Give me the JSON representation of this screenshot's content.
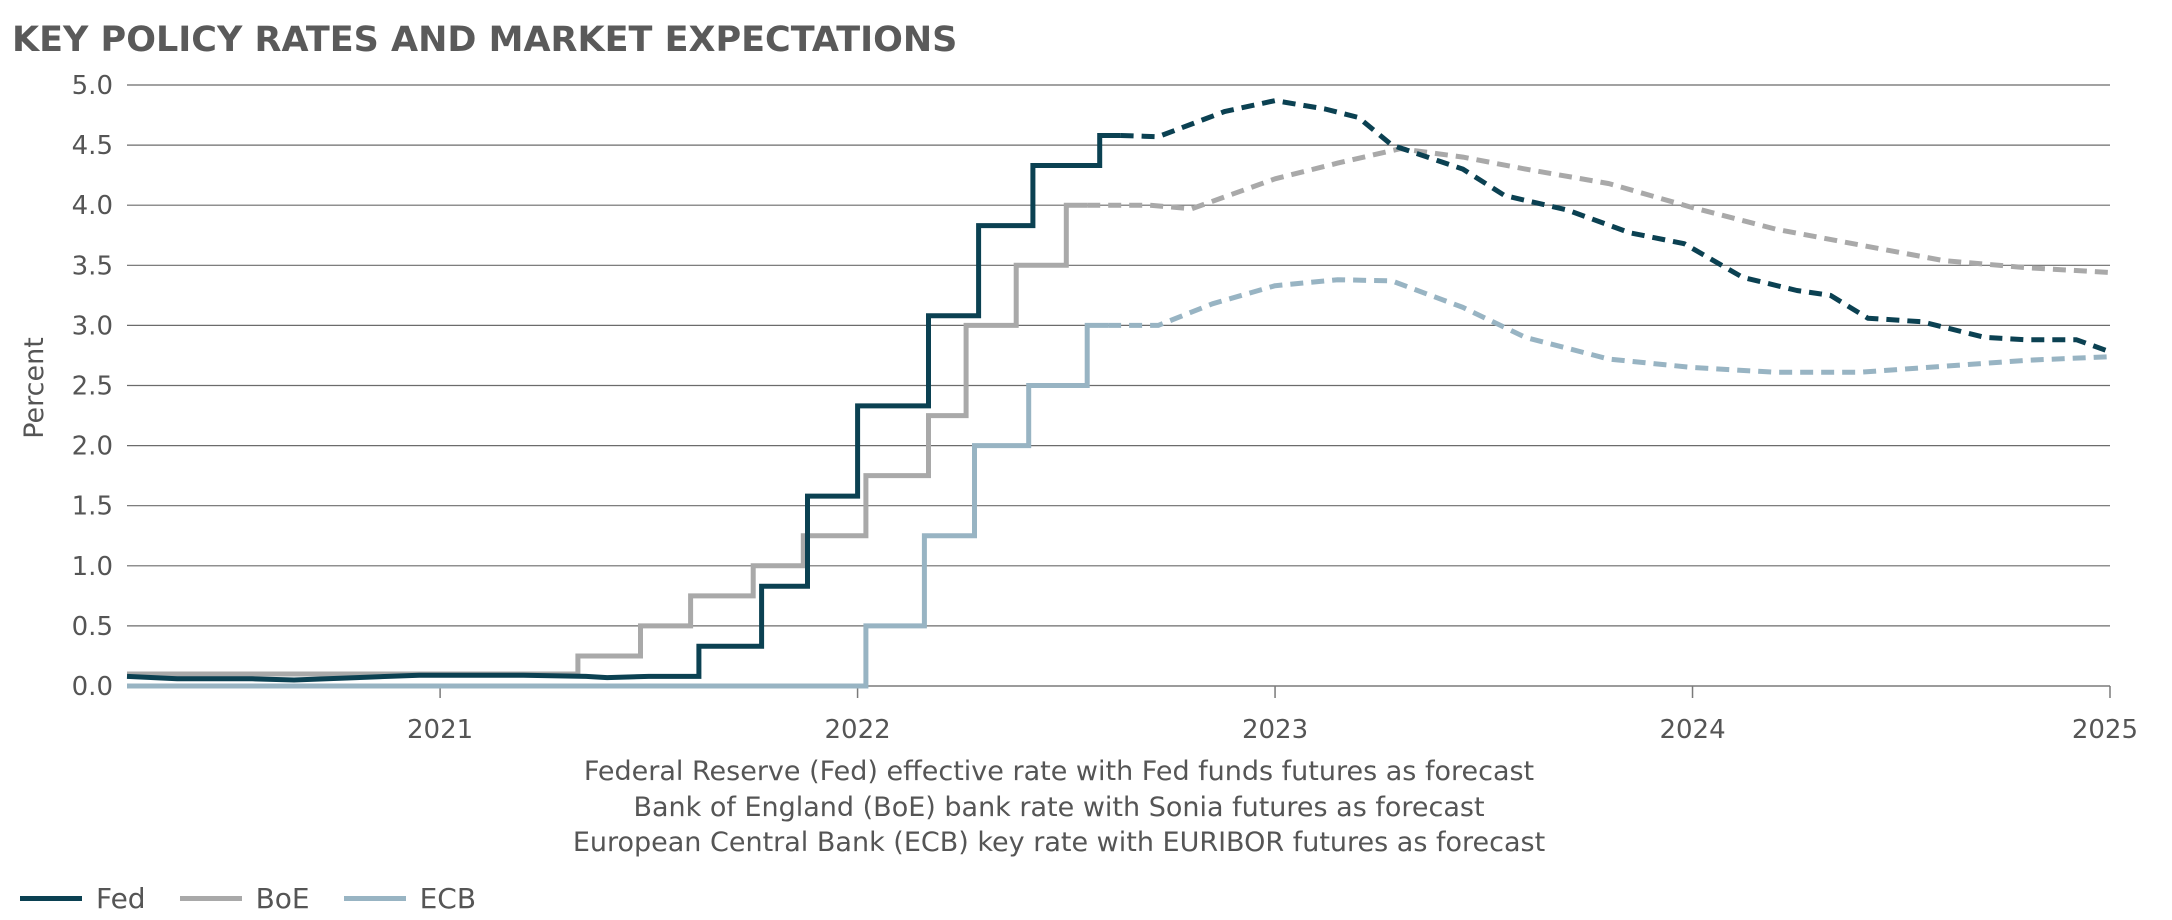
{
  "title": "KEY POLICY RATES AND MARKET EXPECTATIONS",
  "notes": [
    "Federal Reserve (Fed) effective rate with Fed funds futures as forecast",
    "Bank of England (BoE) bank rate with Sonia futures as forecast",
    "European Central Bank (ECB) key rate with EURIBOR futures as forecast"
  ],
  "chart_data": {
    "type": "line",
    "title": "KEY POLICY RATES AND MARKET EXPECTATIONS",
    "xlabel": "",
    "ylabel": "Percent",
    "xlim": [
      2020.25,
      2025.0
    ],
    "ylim": [
      0,
      5.0
    ],
    "y_ticks": [
      "0.0",
      "0.5",
      "1.0",
      "1.5",
      "2.0",
      "2.5",
      "3.0",
      "3.5",
      "4.0",
      "4.5",
      "5.0"
    ],
    "x_ticks": [
      "2021",
      "2022",
      "2023",
      "2024",
      "2025"
    ],
    "grid": "horizontal",
    "legend_position": "bottom-left",
    "forecast_style": "dashed",
    "series": [
      {
        "name": "Fed",
        "color": "#0b4152",
        "actual": [
          [
            2020.25,
            0.08
          ],
          [
            2020.37,
            0.06
          ],
          [
            2020.55,
            0.06
          ],
          [
            2020.65,
            0.05
          ],
          [
            2020.8,
            0.07
          ],
          [
            2020.95,
            0.09
          ],
          [
            2021.2,
            0.09
          ],
          [
            2021.35,
            0.08
          ],
          [
            2021.4,
            0.07
          ],
          [
            2021.5,
            0.08
          ],
          [
            2021.62,
            0.08
          ],
          [
            2021.62,
            0.33
          ],
          [
            2021.77,
            0.33
          ],
          [
            2021.77,
            0.83
          ],
          [
            2021.88,
            0.83
          ],
          [
            2021.88,
            1.58
          ],
          [
            2022.0,
            1.58
          ],
          [
            2022.0,
            2.33
          ],
          [
            2022.17,
            2.33
          ],
          [
            2022.17,
            3.08
          ],
          [
            2022.29,
            3.08
          ],
          [
            2022.29,
            3.83
          ],
          [
            2022.42,
            3.83
          ],
          [
            2022.42,
            4.33
          ],
          [
            2022.58,
            4.33
          ],
          [
            2022.58,
            4.58
          ],
          [
            2022.63,
            4.58
          ]
        ],
        "forecast": [
          [
            2022.63,
            4.58
          ],
          [
            2022.72,
            4.57
          ],
          [
            2022.88,
            4.78
          ],
          [
            2023.0,
            4.87
          ],
          [
            2023.12,
            4.8
          ],
          [
            2023.2,
            4.73
          ],
          [
            2023.28,
            4.5
          ],
          [
            2023.45,
            4.3
          ],
          [
            2023.55,
            4.08
          ],
          [
            2023.7,
            3.96
          ],
          [
            2023.85,
            3.77
          ],
          [
            2023.98,
            3.68
          ],
          [
            2024.12,
            3.4
          ],
          [
            2024.25,
            3.29
          ],
          [
            2024.33,
            3.25
          ],
          [
            2024.42,
            3.06
          ],
          [
            2024.55,
            3.03
          ],
          [
            2024.7,
            2.9
          ],
          [
            2024.8,
            2.88
          ],
          [
            2024.92,
            2.88
          ],
          [
            2025.0,
            2.78
          ]
        ]
      },
      {
        "name": "BoE",
        "color": "#a9a9a9",
        "actual": [
          [
            2020.25,
            0.1
          ],
          [
            2021.33,
            0.1
          ],
          [
            2021.33,
            0.25
          ],
          [
            2021.48,
            0.25
          ],
          [
            2021.48,
            0.5
          ],
          [
            2021.6,
            0.5
          ],
          [
            2021.6,
            0.75
          ],
          [
            2021.75,
            0.75
          ],
          [
            2021.75,
            1.0
          ],
          [
            2021.87,
            1.0
          ],
          [
            2021.87,
            1.25
          ],
          [
            2022.02,
            1.25
          ],
          [
            2022.02,
            1.75
          ],
          [
            2022.17,
            1.75
          ],
          [
            2022.17,
            2.25
          ],
          [
            2022.26,
            2.25
          ],
          [
            2022.26,
            3.0
          ],
          [
            2022.38,
            3.0
          ],
          [
            2022.38,
            3.5
          ],
          [
            2022.5,
            3.5
          ],
          [
            2022.5,
            4.0
          ],
          [
            2022.55,
            4.0
          ]
        ],
        "forecast": [
          [
            2022.55,
            4.0
          ],
          [
            2022.7,
            4.0
          ],
          [
            2022.8,
            3.97
          ],
          [
            2023.0,
            4.22
          ],
          [
            2023.15,
            4.35
          ],
          [
            2023.3,
            4.47
          ],
          [
            2023.45,
            4.4
          ],
          [
            2023.6,
            4.3
          ],
          [
            2023.8,
            4.18
          ],
          [
            2024.0,
            3.98
          ],
          [
            2024.2,
            3.8
          ],
          [
            2024.4,
            3.67
          ],
          [
            2024.6,
            3.54
          ],
          [
            2024.8,
            3.48
          ],
          [
            2025.0,
            3.44
          ]
        ]
      },
      {
        "name": "ECB",
        "color": "#98b4c3",
        "actual": [
          [
            2020.25,
            0.0
          ],
          [
            2022.02,
            0.0
          ],
          [
            2022.02,
            0.5
          ],
          [
            2022.16,
            0.5
          ],
          [
            2022.16,
            1.25
          ],
          [
            2022.28,
            1.25
          ],
          [
            2022.28,
            2.0
          ],
          [
            2022.41,
            2.0
          ],
          [
            2022.41,
            2.5
          ],
          [
            2022.55,
            2.5
          ],
          [
            2022.55,
            3.0
          ],
          [
            2022.6,
            3.0
          ]
        ],
        "forecast": [
          [
            2022.6,
            3.0
          ],
          [
            2022.72,
            3.0
          ],
          [
            2022.85,
            3.18
          ],
          [
            2023.0,
            3.33
          ],
          [
            2023.15,
            3.38
          ],
          [
            2023.28,
            3.37
          ],
          [
            2023.45,
            3.15
          ],
          [
            2023.6,
            2.9
          ],
          [
            2023.8,
            2.72
          ],
          [
            2024.0,
            2.65
          ],
          [
            2024.2,
            2.61
          ],
          [
            2024.4,
            2.61
          ],
          [
            2024.6,
            2.66
          ],
          [
            2024.8,
            2.71
          ],
          [
            2025.0,
            2.74
          ]
        ]
      }
    ]
  }
}
